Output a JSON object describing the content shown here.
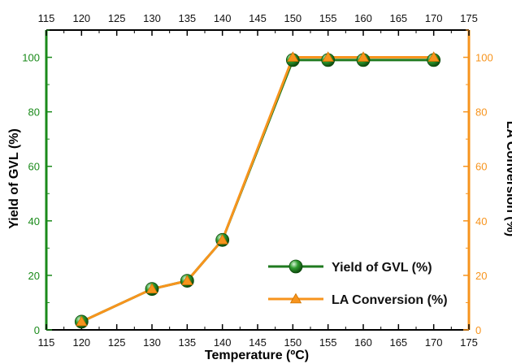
{
  "chart_data": {
    "type": "line",
    "xlabel": "Temperature (ºC)",
    "ylabel_left": "Yield of GVL (%)",
    "ylabel_right": "LA Conversion (%)",
    "xlim": [
      115,
      175
    ],
    "ylim": [
      0,
      110
    ],
    "x_ticks": [
      115,
      120,
      125,
      130,
      135,
      140,
      145,
      150,
      155,
      160,
      165,
      170,
      175
    ],
    "y_ticks": [
      0,
      20,
      40,
      60,
      80,
      100
    ],
    "legend_position": "bottom-right",
    "grid": false,
    "x": [
      120,
      130,
      135,
      140,
      150,
      155,
      160,
      170
    ],
    "series": [
      {
        "name": "Yield of GVL (%)",
        "axis": "left",
        "marker": "circle",
        "color": "#1f7a1f",
        "values": [
          3,
          15,
          18,
          33,
          99,
          99,
          99,
          99
        ]
      },
      {
        "name": "LA Conversion (%)",
        "axis": "right",
        "marker": "triangle",
        "color": "#f7941d",
        "values": [
          3,
          15,
          18,
          33,
          100,
          100,
          100,
          100
        ]
      }
    ]
  },
  "colors": {
    "left_axis": "#1a8a1a",
    "right_axis": "#f7941d",
    "frame": "#000000"
  }
}
